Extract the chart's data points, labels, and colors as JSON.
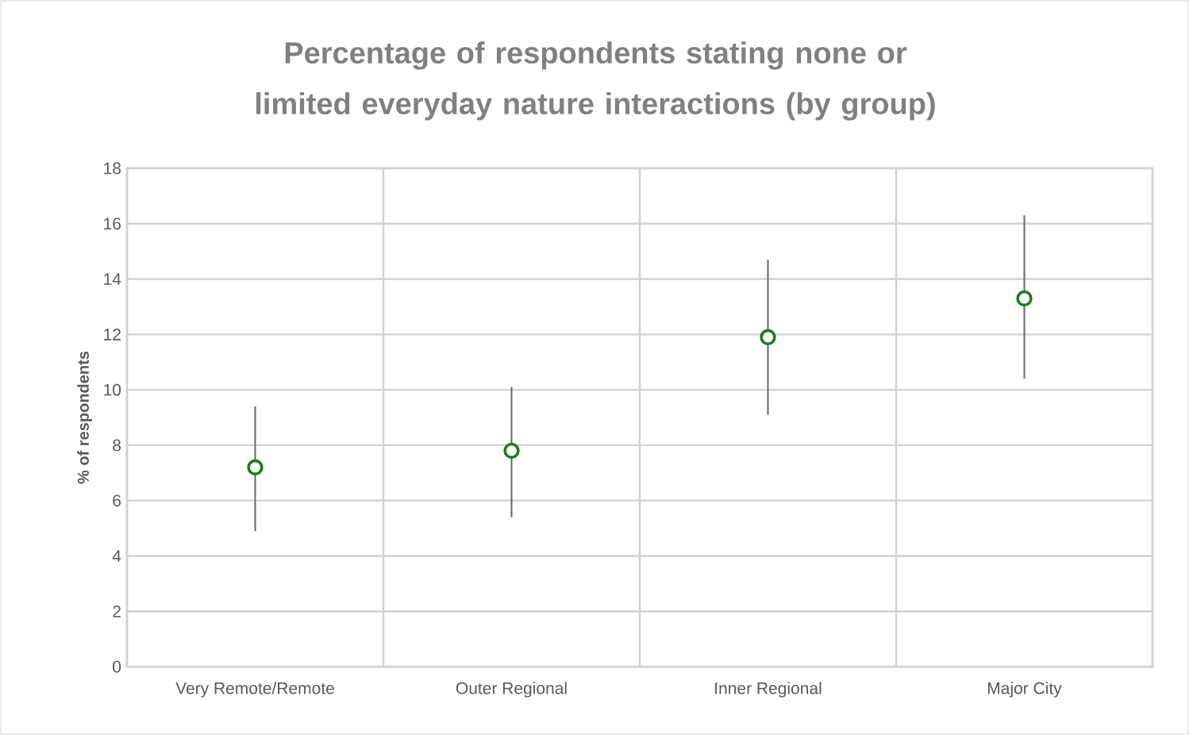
{
  "chart_data": {
    "type": "scatter",
    "title": "Percentage of respondents stating none or limited everyday nature interactions (by group)",
    "ylabel": "% of respondents",
    "categories": [
      "Very Remote/Remote",
      "Outer Regional",
      "Inner Regional",
      "Major City"
    ],
    "values": [
      7.2,
      7.8,
      11.9,
      13.3
    ],
    "errors": [
      [
        4.9,
        9.4
      ],
      [
        5.4,
        10.1
      ],
      [
        9.1,
        14.7
      ],
      [
        10.4,
        16.3
      ]
    ],
    "color": "#1e7b1e",
    "marker": "circle",
    "ylim": [
      0,
      18
    ],
    "yticks": [
      0,
      2,
      4,
      6,
      8,
      10,
      12,
      14,
      16,
      18
    ],
    "grid": true
  }
}
